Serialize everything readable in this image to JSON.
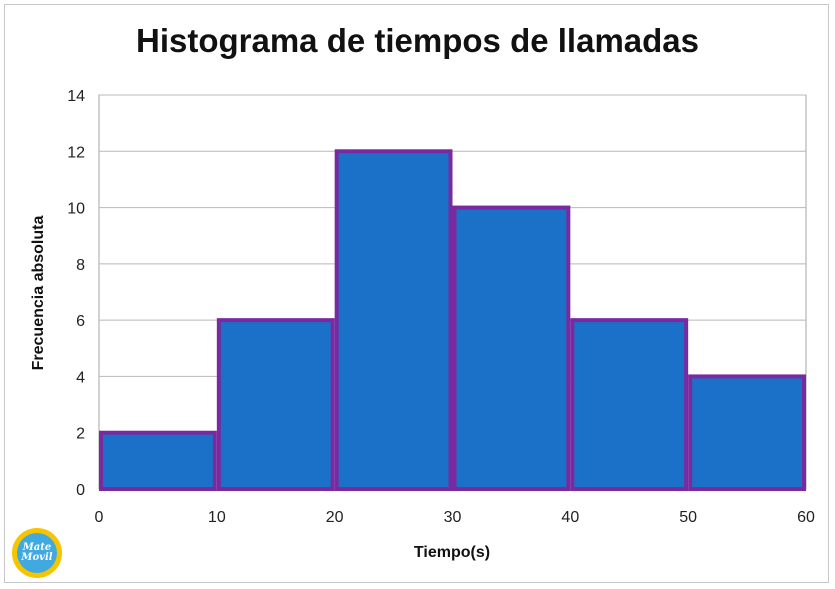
{
  "chart_data": {
    "type": "bar",
    "title": "Histograma de tiempos de llamadas",
    "xlabel": "Tiempo(s)",
    "ylabel": "Frecuencia absoluta",
    "bins": [
      [
        0,
        10
      ],
      [
        10,
        20
      ],
      [
        20,
        30
      ],
      [
        30,
        40
      ],
      [
        40,
        50
      ],
      [
        50,
        60
      ]
    ],
    "values": [
      2,
      6,
      12,
      10,
      6,
      4
    ],
    "xticks": [
      0,
      10,
      20,
      30,
      40,
      50,
      60
    ],
    "yticks": [
      0,
      2,
      4,
      6,
      8,
      10,
      12,
      14
    ],
    "xlim": [
      0,
      60
    ],
    "ylim": [
      0,
      14
    ],
    "grid": true,
    "bar_color": "#1b71c7",
    "bar_edge_color": "#7a2aa0"
  },
  "logo": {
    "line1": "Mate",
    "line2": "Movil"
  }
}
